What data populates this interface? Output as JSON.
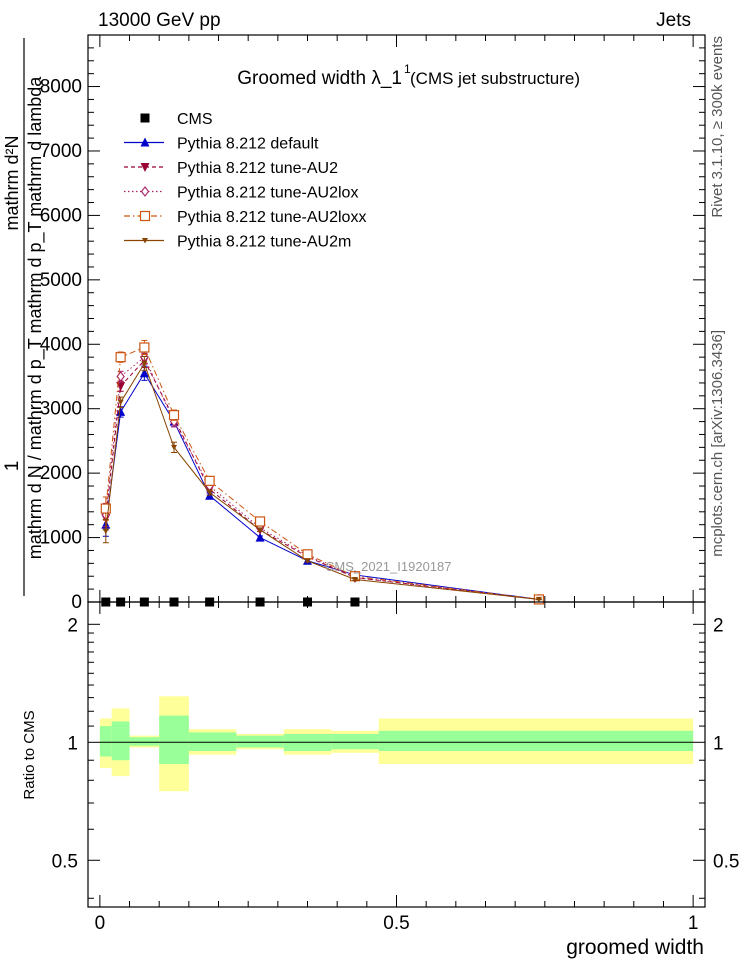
{
  "header": {
    "left": "13000 GeV pp",
    "right": "Jets",
    "side_top": "Rivet 3.1.10, ≥ 300k events",
    "side_bottom": "mcplots.cern.ch [arXiv:1306.3436]"
  },
  "chart_data": [
    {
      "type": "line",
      "title": "Groomed width  λ_1",
      "title_sup": "1",
      "subtitle": "(CMS jet substructure)",
      "watermark": "CMS_2021_I1920187",
      "ylabel_top": "1",
      "ylabel_line1": "mathrm d²N",
      "ylabel_line2": "mathrm d N / mathrm d p_T mathrm d p_T mathrm d lambda",
      "ylim": [
        0,
        8800
      ],
      "yticks": [
        0,
        1000,
        2000,
        3000,
        4000,
        5000,
        6000,
        7000,
        8000
      ],
      "ytick_labels": [
        "0",
        "1000",
        "2000",
        "3000",
        "4000",
        "5000",
        "6000",
        "7000",
        "8000"
      ],
      "xlim": [
        -0.02,
        1.02
      ],
      "legend_position": "top-left",
      "series": [
        {
          "name": "CMS",
          "color": "#000000",
          "marker": "square",
          "dash": "none",
          "x": [
            0.01,
            0.035,
            0.075,
            0.125,
            0.185,
            0.27,
            0.35,
            0.43
          ],
          "values": [
            0,
            0,
            0,
            0,
            0,
            0,
            0,
            0
          ]
        },
        {
          "name": "Pythia 8.212 default",
          "color": "#0000cc",
          "marker": "triangle-up",
          "dash": "solid",
          "x": [
            0.01,
            0.035,
            0.075,
            0.125,
            0.185,
            0.27,
            0.35,
            0.43,
            0.74
          ],
          "values": [
            1200,
            2950,
            3550,
            2800,
            1650,
            1000,
            640,
            420,
            40
          ],
          "errors": [
            180,
            80,
            110,
            80,
            40,
            25,
            20,
            15,
            5
          ]
        },
        {
          "name": "Pythia 8.212 tune-AU2",
          "color": "#990033",
          "marker": "triangle-down",
          "dash": "dashed",
          "x": [
            0.01,
            0.035,
            0.075,
            0.125,
            0.185,
            0.27,
            0.35,
            0.43,
            0.74
          ],
          "values": [
            1300,
            3350,
            3750,
            2850,
            1750,
            1120,
            700,
            380,
            40
          ],
          "errors": [
            180,
            80,
            110,
            80,
            40,
            25,
            20,
            15,
            5
          ]
        },
        {
          "name": "Pythia 8.212 tune-AU2lox",
          "color": "#aa2266",
          "marker": "diamond-open",
          "dash": "dotted",
          "x": [
            0.01,
            0.035,
            0.075,
            0.125,
            0.185,
            0.27,
            0.35,
            0.43,
            0.74
          ],
          "values": [
            1350,
            3500,
            3800,
            2800,
            1800,
            1150,
            720,
            380,
            40
          ],
          "errors": [
            180,
            80,
            110,
            80,
            40,
            25,
            20,
            15,
            5
          ]
        },
        {
          "name": "Pythia 8.212 tune-AU2loxx",
          "color": "#cc5511",
          "marker": "square-open",
          "dash": "dashdot",
          "x": [
            0.01,
            0.035,
            0.075,
            0.125,
            0.185,
            0.27,
            0.35,
            0.43,
            0.74
          ],
          "values": [
            1450,
            3800,
            3950,
            2900,
            1880,
            1250,
            740,
            400,
            40
          ],
          "errors": [
            180,
            80,
            110,
            80,
            40,
            25,
            20,
            15,
            5
          ]
        },
        {
          "name": "Pythia 8.212 tune-AU2m",
          "color": "#884400",
          "marker": "triangle-down-small",
          "dash": "solid",
          "x": [
            0.01,
            0.035,
            0.075,
            0.125,
            0.185,
            0.27,
            0.35,
            0.43,
            0.74
          ],
          "values": [
            1100,
            3100,
            3700,
            2400,
            1700,
            1120,
            640,
            350,
            40
          ],
          "errors": [
            180,
            80,
            110,
            80,
            40,
            25,
            20,
            15,
            5
          ]
        }
      ]
    },
    {
      "type": "area",
      "ylabel": "Ratio to CMS",
      "xlabel": "groomed width",
      "ylim": [
        0.38,
        2.28
      ],
      "yticks": [
        0.5,
        1,
        2
      ],
      "ytick_labels": [
        "0.5",
        "1",
        "2"
      ],
      "xlim": [
        -0.02,
        1.02
      ],
      "xticks": [
        0,
        0.5,
        1
      ],
      "xtick_labels": [
        "0",
        "0.5",
        "1"
      ],
      "reference_line": 1,
      "bands": [
        {
          "name": "stat",
          "color": "#99ff99",
          "bins": [
            [
              0.0,
              0.02,
              0.92,
              1.1
            ],
            [
              0.02,
              0.05,
              0.9,
              1.13
            ],
            [
              0.05,
              0.1,
              0.98,
              1.03
            ],
            [
              0.1,
              0.15,
              0.88,
              1.17
            ],
            [
              0.15,
              0.23,
              0.95,
              1.06
            ],
            [
              0.23,
              0.31,
              0.97,
              1.04
            ],
            [
              0.31,
              0.39,
              0.95,
              1.05
            ],
            [
              0.39,
              0.47,
              0.96,
              1.05
            ],
            [
              0.47,
              1.0,
              0.95,
              1.07
            ]
          ]
        },
        {
          "name": "total",
          "color": "#ffff99",
          "bins": [
            [
              0.0,
              0.02,
              0.86,
              1.15
            ],
            [
              0.02,
              0.05,
              0.82,
              1.22
            ],
            [
              0.05,
              0.1,
              0.97,
              1.04
            ],
            [
              0.1,
              0.15,
              0.75,
              1.31
            ],
            [
              0.15,
              0.23,
              0.93,
              1.08
            ],
            [
              0.23,
              0.31,
              0.96,
              1.05
            ],
            [
              0.31,
              0.39,
              0.93,
              1.08
            ],
            [
              0.39,
              0.47,
              0.94,
              1.07
            ],
            [
              0.47,
              1.0,
              0.88,
              1.15
            ]
          ]
        }
      ]
    }
  ]
}
